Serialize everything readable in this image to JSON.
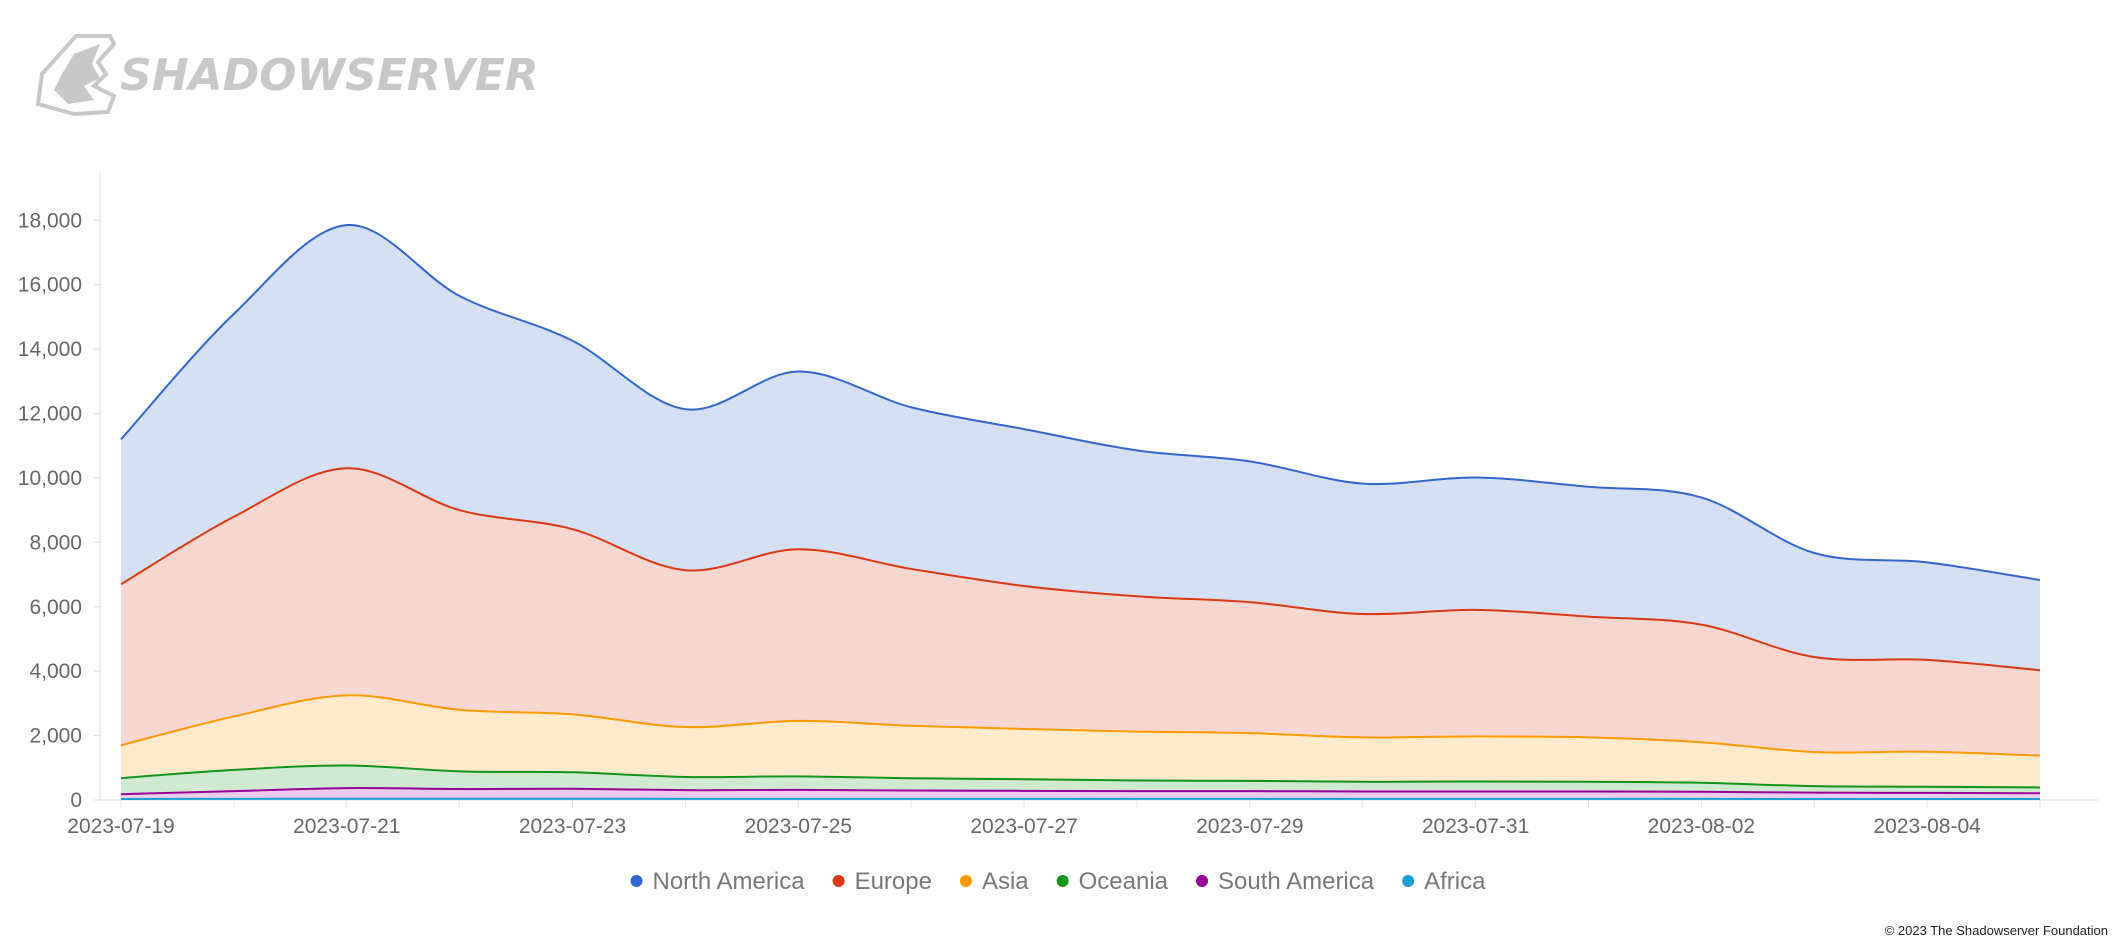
{
  "logo": {
    "text": "SHADOWSERVER"
  },
  "copyright": "© 2023 The Shadowserver Foundation",
  "chart_data": {
    "type": "area",
    "stacked": true,
    "x": [
      "2023-07-19",
      "2023-07-20",
      "2023-07-21",
      "2023-07-22",
      "2023-07-23",
      "2023-07-24",
      "2023-07-25",
      "2023-07-26",
      "2023-07-27",
      "2023-07-28",
      "2023-07-29",
      "2023-07-30",
      "2023-07-31",
      "2023-08-01",
      "2023-08-02",
      "2023-08-03",
      "2023-08-04",
      "2023-08-05"
    ],
    "x_tick_labels": [
      "2023-07-19",
      "2023-07-21",
      "2023-07-23",
      "2023-07-25",
      "2023-07-27",
      "2023-07-29",
      "2023-07-31",
      "2023-08-02",
      "2023-08-04"
    ],
    "y_tick_labels": [
      "0",
      "2,000",
      "4,000",
      "6,000",
      "8,000",
      "10,000",
      "12,000",
      "14,000",
      "16,000",
      "18,000"
    ],
    "ylim": [
      0,
      19500
    ],
    "grid": false,
    "legend_position": "bottom",
    "series": [
      {
        "name": "Africa",
        "color": "#1a9fd4",
        "values": [
          30,
          35,
          40,
          40,
          40,
          35,
          35,
          35,
          35,
          35,
          35,
          35,
          35,
          35,
          35,
          30,
          30,
          30
        ]
      },
      {
        "name": "South America",
        "color": "#990099",
        "values": [
          150,
          240,
          330,
          300,
          310,
          270,
          280,
          260,
          250,
          240,
          240,
          230,
          230,
          230,
          220,
          200,
          190,
          180
        ]
      },
      {
        "name": "Oceania",
        "color": "#109618",
        "values": [
          500,
          660,
          700,
          550,
          510,
          410,
          420,
          380,
          360,
          330,
          320,
          300,
          310,
          300,
          280,
          200,
          190,
          180
        ]
      },
      {
        "name": "Asia",
        "color": "#ff9900",
        "values": [
          1020,
          1660,
          2180,
          1910,
          1800,
          1550,
          1720,
          1630,
          1560,
          1520,
          1480,
          1380,
          1400,
          1380,
          1260,
          1060,
          1090,
          990
        ]
      },
      {
        "name": "Europe",
        "color": "#dc3912",
        "values": [
          5000,
          6200,
          7050,
          6200,
          5750,
          4870,
          5330,
          4870,
          4440,
          4200,
          4070,
          3830,
          3930,
          3750,
          3650,
          2950,
          2850,
          2650
        ]
      },
      {
        "name": "North America",
        "color": "#3366cc",
        "values": [
          4500,
          6300,
          7550,
          6650,
          5850,
          5000,
          5520,
          5020,
          4870,
          4530,
          4370,
          4050,
          4110,
          4030,
          3950,
          3230,
          3030,
          2800
        ]
      }
    ],
    "legend_order": [
      "North America",
      "Europe",
      "Asia",
      "Oceania",
      "South America",
      "Africa"
    ]
  }
}
